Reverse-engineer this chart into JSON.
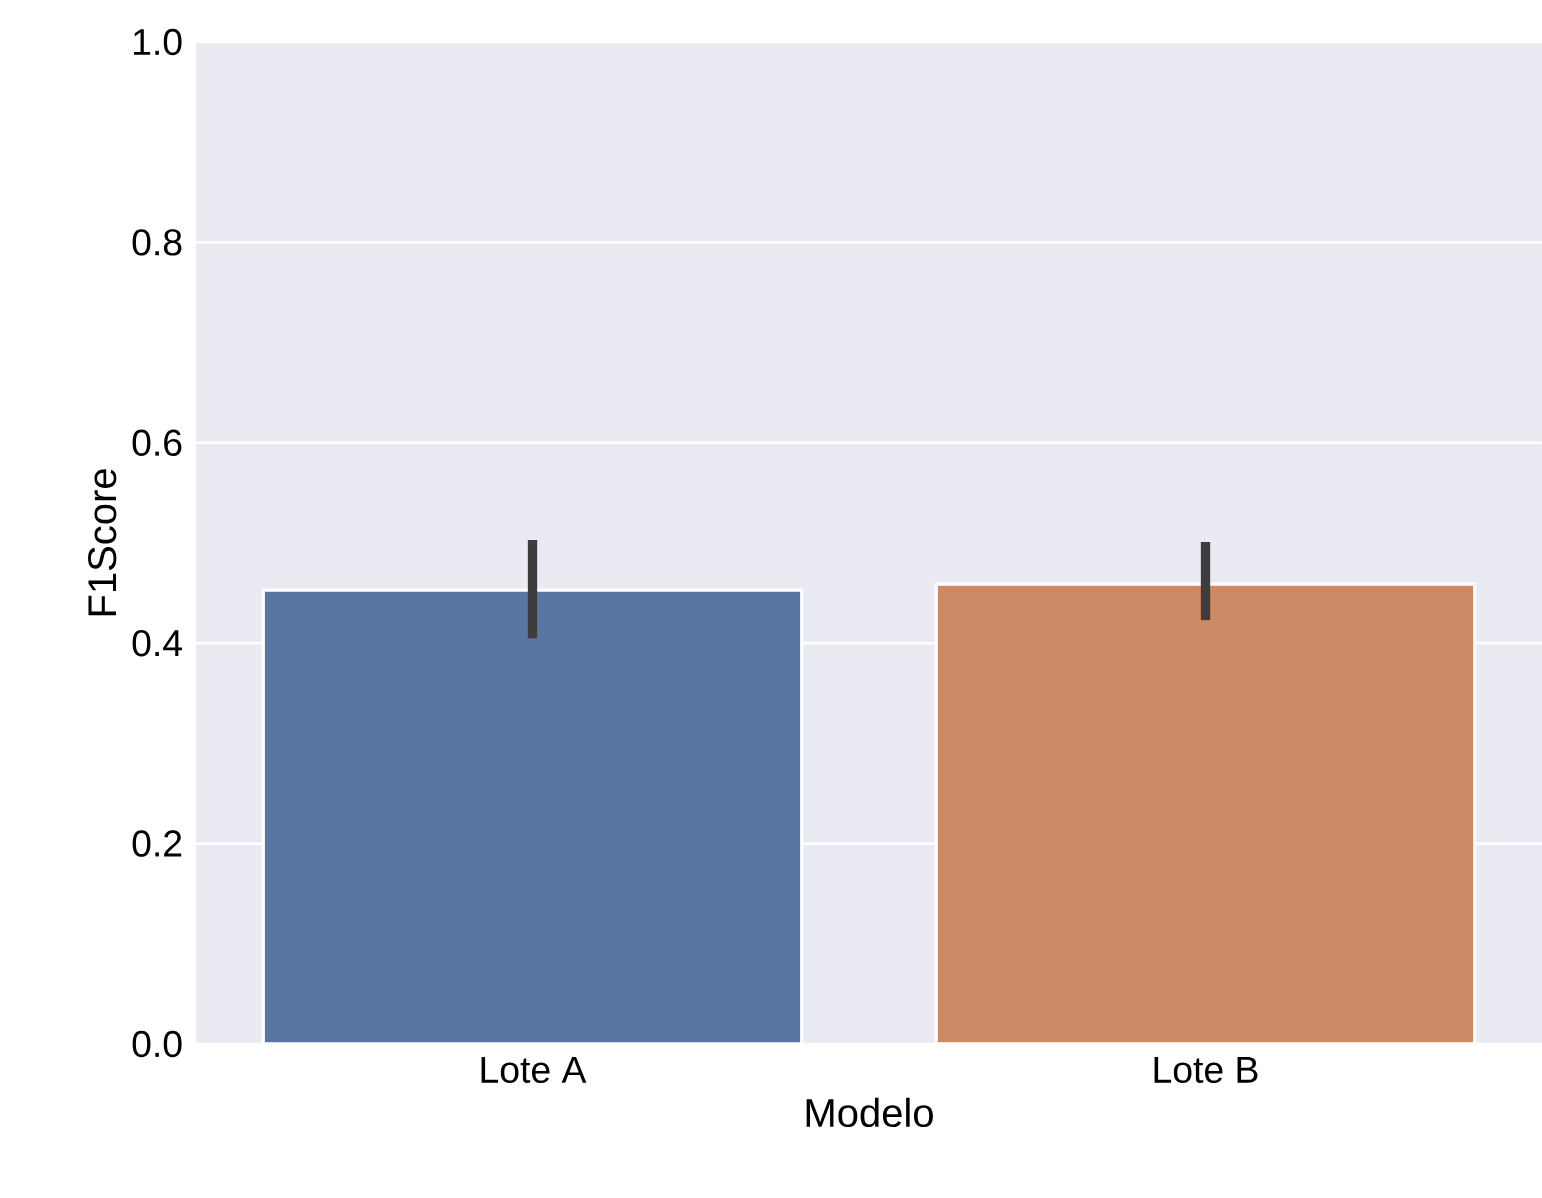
{
  "chart_data": {
    "type": "bar",
    "xlabel": "Modelo",
    "ylabel": "F1Score",
    "categories": [
      "Lote A",
      "Lote B"
    ],
    "values": [
      0.453,
      0.459
    ],
    "colors": [
      "#5875a4",
      "#cc8963"
    ],
    "errors": [
      [
        0.405,
        0.503
      ],
      [
        0.423,
        0.501
      ]
    ],
    "ylim": [
      0,
      1
    ],
    "yticks": [
      {
        "value": 0,
        "label": "0.0"
      },
      0.2,
      0.4,
      0.6,
      0.8,
      {
        "value": 1,
        "label": "1.0"
      }
    ],
    "grid": "y"
  }
}
